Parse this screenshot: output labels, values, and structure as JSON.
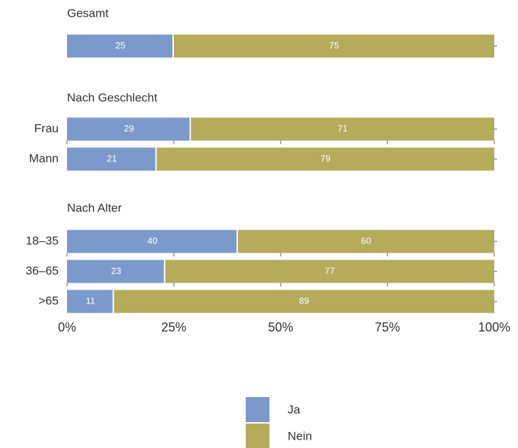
{
  "chart_data": {
    "type": "bar",
    "orientation": "horizontal",
    "stacked": true,
    "xlim": [
      0,
      100
    ],
    "x_ticks": [
      "0%",
      "25%",
      "50%",
      "75%",
      "100%"
    ],
    "groups": [
      {
        "title": "Gesamt",
        "rows": [
          {
            "label": "",
            "ja": 25,
            "nein": 75
          }
        ]
      },
      {
        "title": "Nach Geschlecht",
        "rows": [
          {
            "label": "Frau",
            "ja": 29,
            "nein": 71
          },
          {
            "label": "Mann",
            "ja": 21,
            "nein": 79
          }
        ]
      },
      {
        "title": "Nach Alter",
        "rows": [
          {
            "label": "18–35",
            "ja": 40,
            "nein": 60
          },
          {
            "label": "36–65",
            "ja": 23,
            "nein": 77
          },
          {
            "label": ">65",
            "ja": 11,
            "nein": 89
          }
        ]
      }
    ],
    "series": [
      {
        "name": "Ja",
        "key": "ja",
        "color": "#7b9acb"
      },
      {
        "name": "Nein",
        "key": "nein",
        "color": "#b5ab5a"
      }
    ],
    "legend_position": "bottom-center"
  }
}
